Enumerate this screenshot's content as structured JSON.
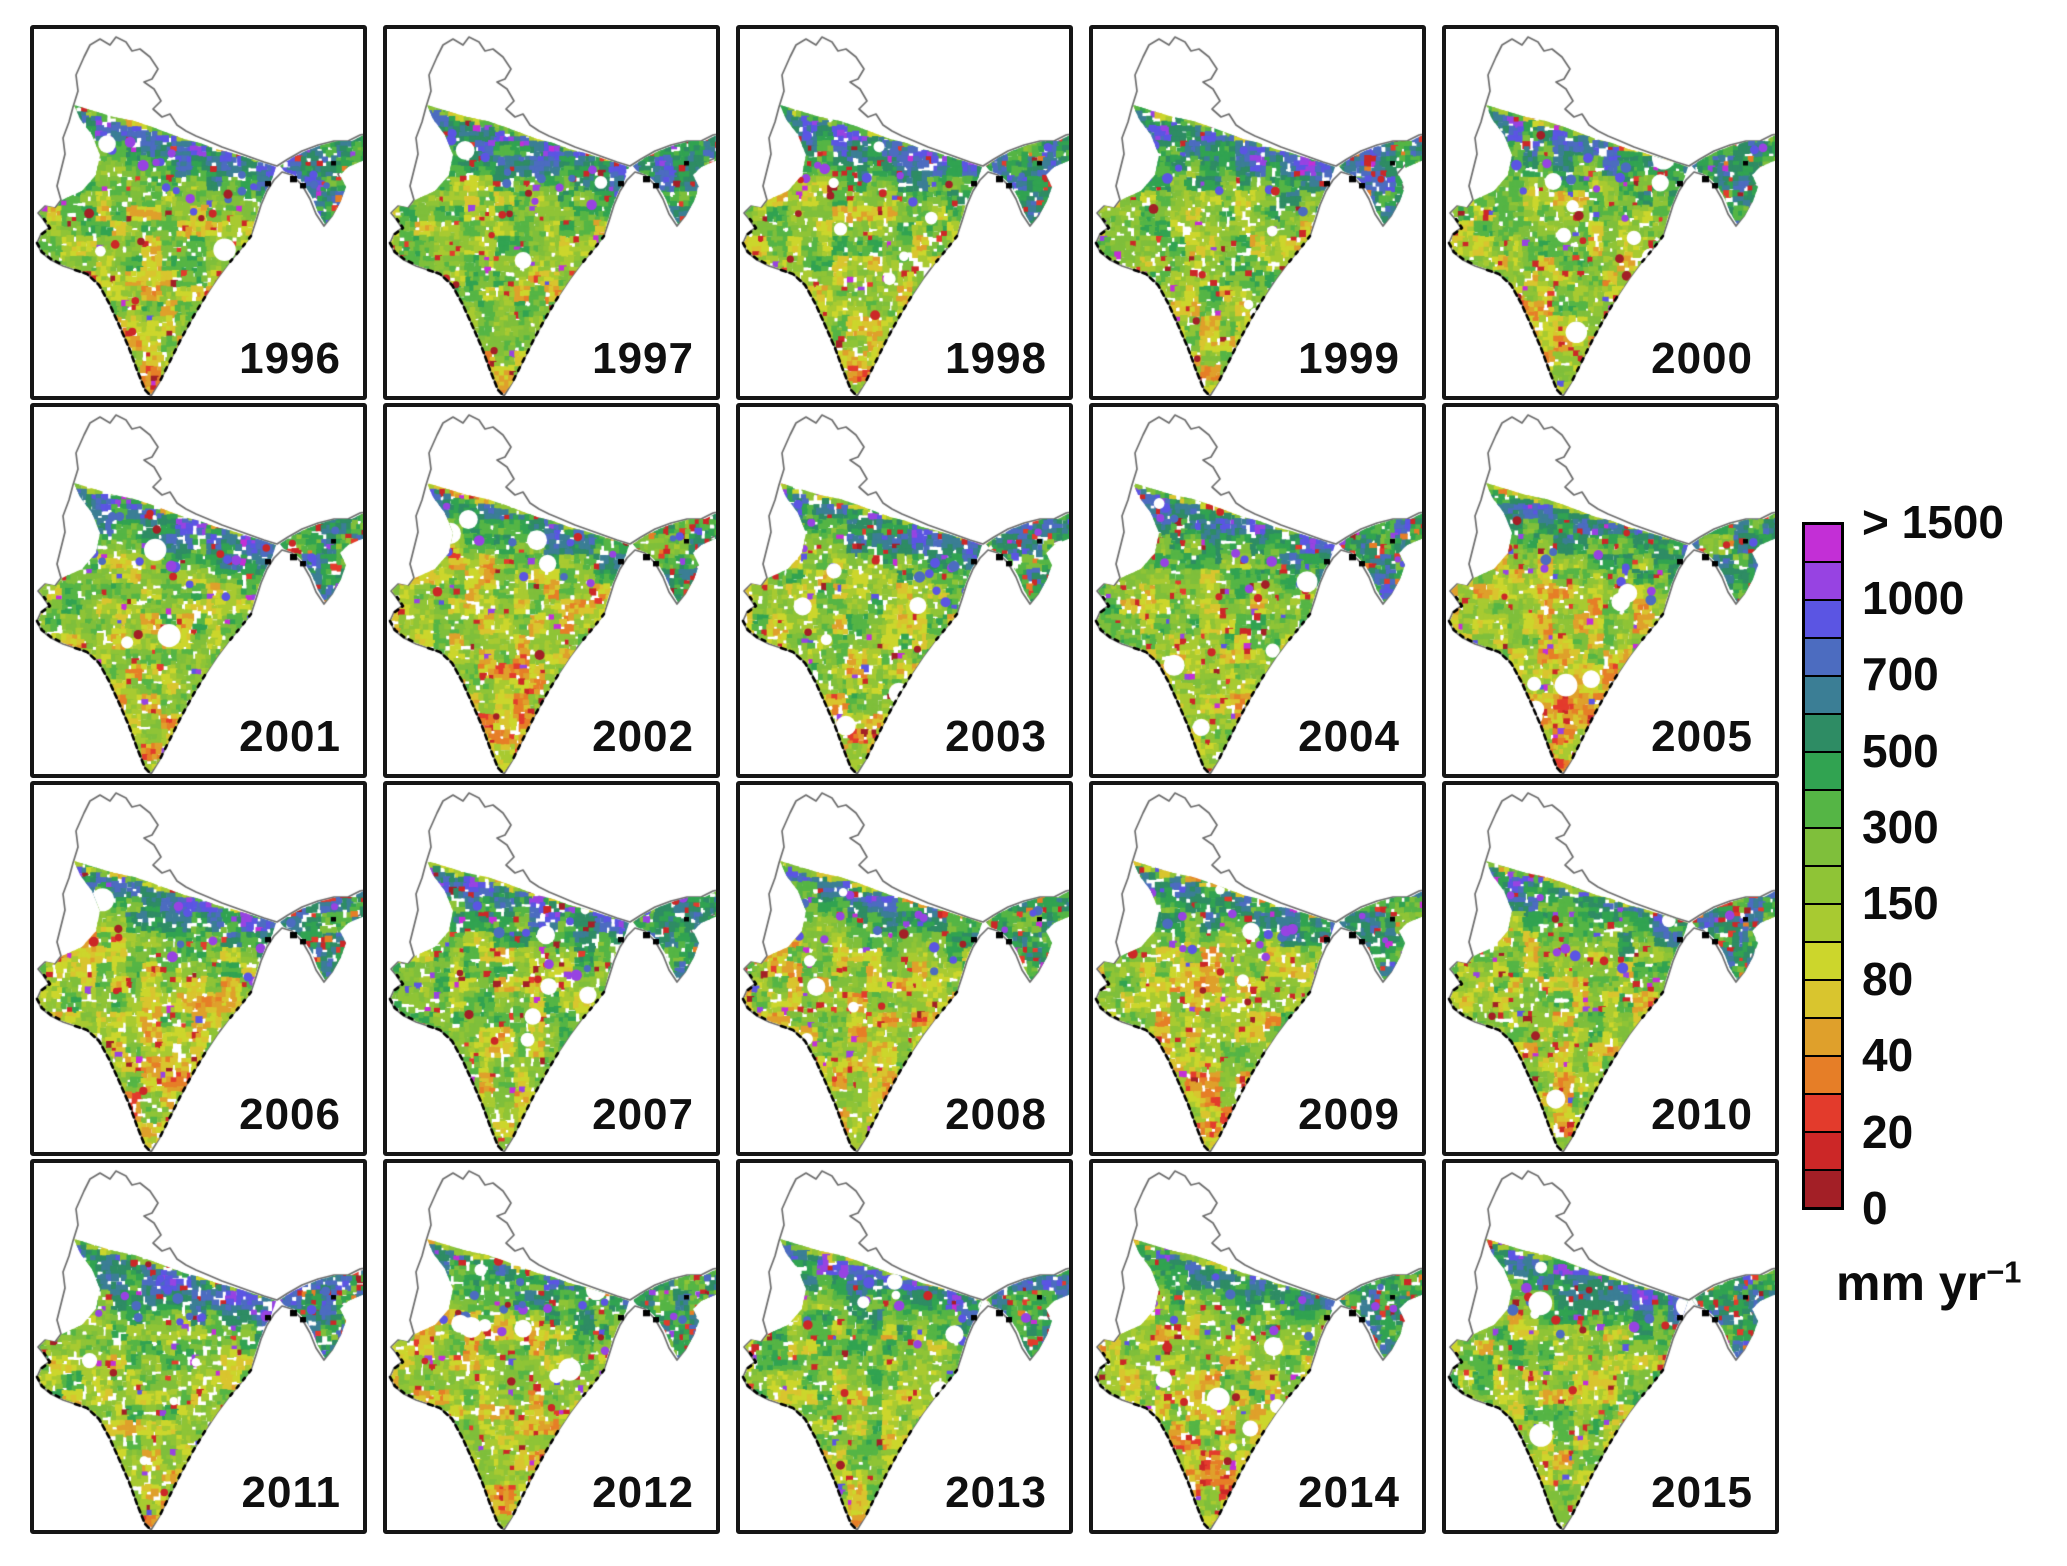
{
  "figure": {
    "rows": 4,
    "cols": 5,
    "panels": [
      {
        "year": "1996"
      },
      {
        "year": "1997"
      },
      {
        "year": "1998"
      },
      {
        "year": "1999"
      },
      {
        "year": "2000"
      },
      {
        "year": "2001"
      },
      {
        "year": "2002"
      },
      {
        "year": "2003"
      },
      {
        "year": "2004"
      },
      {
        "year": "2005"
      },
      {
        "year": "2006"
      },
      {
        "year": "2007"
      },
      {
        "year": "2008"
      },
      {
        "year": "2009"
      },
      {
        "year": "2010"
      },
      {
        "year": "2011"
      },
      {
        "year": "2012"
      },
      {
        "year": "2013"
      },
      {
        "year": "2014"
      },
      {
        "year": "2015"
      }
    ]
  },
  "legend": {
    "tick_labels": [
      "> 1500",
      "1000",
      "700",
      "500",
      "300",
      "150",
      "80",
      "40",
      "20",
      "0"
    ],
    "segment_colors": [
      "#c32fd6",
      "#9743e2",
      "#5b55e3",
      "#4c6cc0",
      "#3b7e95",
      "#2e8c64",
      "#31a351",
      "#55b545",
      "#7fbf3b",
      "#8fc436",
      "#a8ca31",
      "#ccd62c",
      "#d9c52e",
      "#dfa02b",
      "#e67e27",
      "#e33b2c",
      "#cc2727",
      "#a31f26"
    ],
    "units_text": "mm yr",
    "units_exponent": "−1"
  }
}
